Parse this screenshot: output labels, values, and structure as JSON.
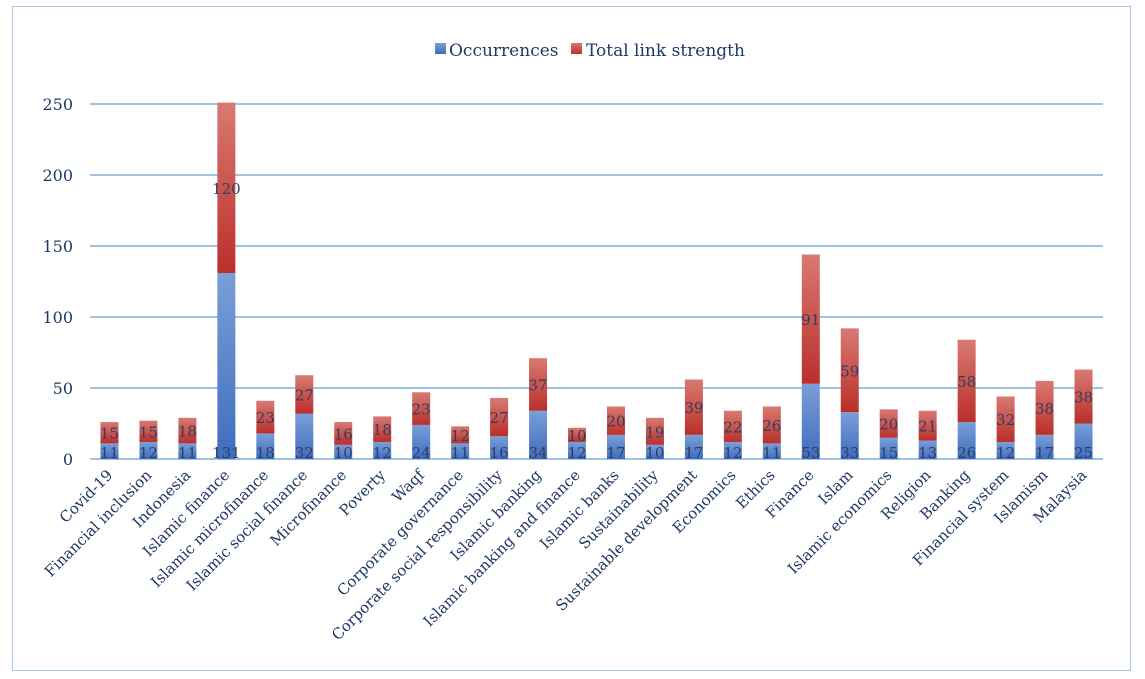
{
  "chart_data": {
    "type": "bar",
    "stacked": true,
    "title": "",
    "xlabel": "",
    "ylabel": "",
    "ylim": [
      0,
      250
    ],
    "yticks": [
      0,
      50,
      100,
      150,
      200,
      250
    ],
    "grid": true,
    "legend_position": "top-center",
    "categories": [
      "Covid-19",
      "Financial inclusion",
      "Indonesia",
      "Islamic finance",
      "Islamic microfinance",
      "Islamic social finance",
      "Microfinance",
      "Poverty",
      "Waqf",
      "Corporate governance",
      "Corporate social responsibility",
      "Islamic banking",
      "Islamic banking and finance",
      "Islamic banks",
      "Sustainability",
      "Sustainable development",
      "Economics",
      "Ethics",
      "Finance",
      "Islam",
      "Islamic economics",
      "Religion",
      "Banking",
      "Financial system",
      "Islamism",
      "Malaysia"
    ],
    "series": [
      {
        "name": "Occurrences",
        "color": "#4472c4",
        "values": [
          11,
          12,
          11,
          131,
          18,
          32,
          10,
          12,
          24,
          11,
          16,
          34,
          12,
          17,
          10,
          17,
          12,
          11,
          53,
          33,
          15,
          13,
          26,
          12,
          17,
          25
        ]
      },
      {
        "name": "Total link strength",
        "color": "#c0392b",
        "values": [
          15,
          15,
          18,
          120,
          23,
          27,
          16,
          18,
          23,
          12,
          27,
          37,
          10,
          20,
          19,
          39,
          22,
          26,
          91,
          59,
          20,
          21,
          58,
          32,
          38,
          38
        ]
      }
    ]
  }
}
